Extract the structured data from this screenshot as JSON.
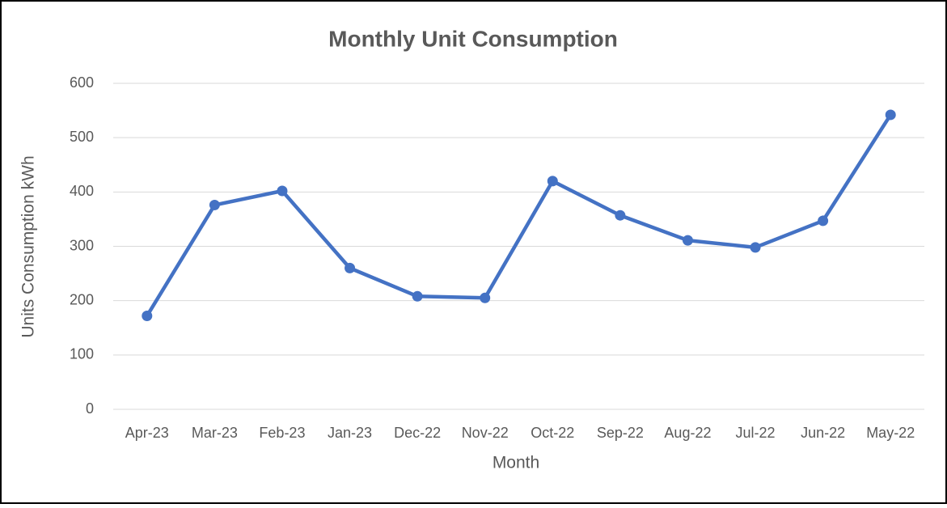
{
  "chart_data": {
    "type": "line",
    "title": "Monthly Unit Consumption",
    "x_label": "Month",
    "y_label": "Units Consumption kWh",
    "categories": [
      "Apr-23",
      "Mar-23",
      "Feb-23",
      "Jan-23",
      "Dec-22",
      "Nov-22",
      "Oct-22",
      "Sep-22",
      "Aug-22",
      "Jul-22",
      "Jun-22",
      "May-22"
    ],
    "values": [
      172,
      376,
      402,
      260,
      208,
      205,
      420,
      357,
      311,
      298,
      347,
      542
    ],
    "color": "#4472c4",
    "ylim": [
      0,
      600
    ],
    "yticks": [
      0,
      100,
      200,
      300,
      400,
      500,
      600
    ],
    "grid": true
  }
}
